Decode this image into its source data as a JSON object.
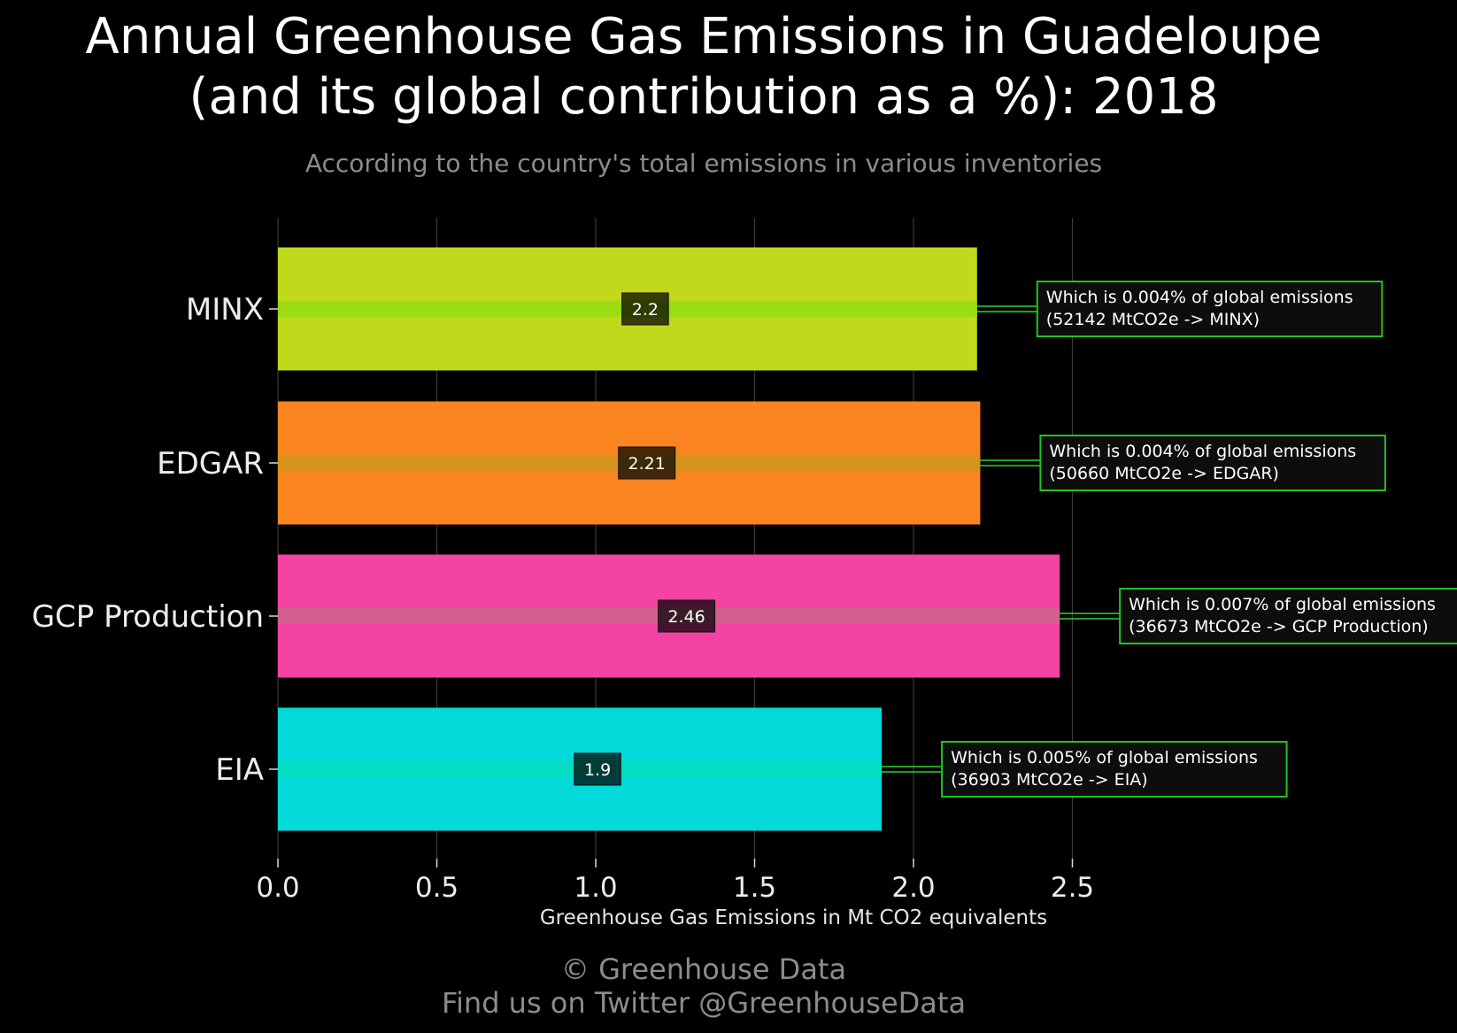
{
  "title_line1": "Annual Greenhouse Gas Emissions in Guadeloupe",
  "title_line2": "(and its global contribution as a %): 2018",
  "subtitle": "According to the country's total emissions in various inventories",
  "footer_line1": "© Greenhouse Data",
  "footer_line2": "Find us on Twitter @GreenhouseData",
  "colors": {
    "background": "#000000",
    "grid": "#3a3a3a",
    "annotation_border": "#22c322",
    "annotation_fill": "#0d0d0d",
    "connector": "#2bd62b"
  },
  "chart_data": {
    "type": "bar",
    "orientation": "horizontal",
    "xlabel": "Greenhouse Gas Emissions in Mt CO2 equivalents",
    "ylabel": "",
    "xlim": [
      0,
      2.75
    ],
    "xticks": [
      "0.0",
      "0.5",
      "1.0",
      "1.5",
      "2.0",
      "2.5"
    ],
    "grid": true,
    "categories": [
      "MINX",
      "EDGAR",
      "GCP Production",
      "EIA"
    ],
    "values": [
      2.2,
      2.21,
      2.46,
      1.9
    ],
    "value_labels": [
      "2.2",
      "2.21",
      "2.46",
      "1.9"
    ],
    "bar_colors": [
      "#c0d91b",
      "#fa8520",
      "#f443a3",
      "#02d9d9"
    ],
    "stripe_colors": [
      "#98db14",
      "#d1951c",
      "#d2648e",
      "#04dcc0"
    ],
    "annotations": [
      {
        "line1": "Which is 0.004% of global emissions",
        "line2": "(52142 MtCO2e -> MINX)"
      },
      {
        "line1": "Which is 0.004% of global emissions",
        "line2": "(50660 MtCO2e -> EDGAR)"
      },
      {
        "line1": "Which is 0.007% of global emissions",
        "line2": "(36673 MtCO2e -> GCP Production)"
      },
      {
        "line1": "Which is 0.005% of global emissions",
        "line2": "(36903 MtCO2e -> EIA)"
      }
    ]
  }
}
